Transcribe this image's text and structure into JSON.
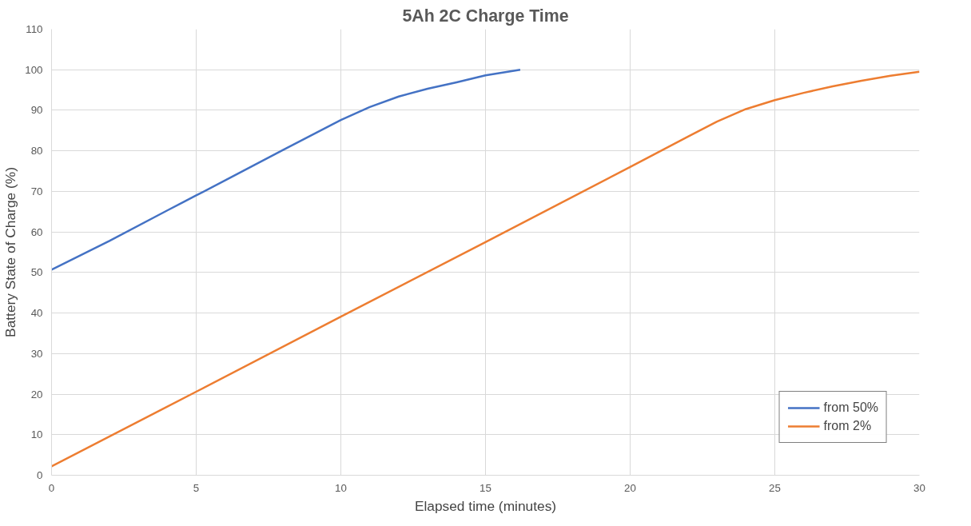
{
  "chart_data": {
    "type": "line",
    "title": "5Ah 2C Charge Time",
    "xlabel": "Elapsed time (minutes)",
    "ylabel": "Battery State of Charge (%)",
    "xlim": [
      0,
      30
    ],
    "xticks": [
      0,
      5,
      10,
      15,
      20,
      25,
      30
    ],
    "ylim": [
      0,
      110
    ],
    "yticks": [
      0,
      10,
      20,
      30,
      40,
      50,
      60,
      70,
      80,
      90,
      100,
      110
    ],
    "grid": true,
    "legend": "bottom right",
    "marker": "none",
    "line_style": "solid",
    "series": [
      {
        "name": "from 50%",
        "color": "#4472c4",
        "x": [
          0,
          2,
          4,
          5,
          6,
          8,
          10,
          11,
          12,
          13,
          14,
          15,
          16.2
        ],
        "values": [
          50.7,
          57.8,
          65.3,
          69,
          72.7,
          80.2,
          87.6,
          90.8,
          93.4,
          95.3,
          96.9,
          98.6,
          100
        ]
      },
      {
        "name": "from 2%",
        "color": "#ed7d31",
        "x": [
          0,
          5,
          10,
          15,
          20,
          22,
          23,
          24,
          25,
          26,
          27,
          28,
          29,
          30
        ],
        "values": [
          2.2,
          20.6,
          39.1,
          57.5,
          76,
          83.5,
          87.2,
          90.3,
          92.5,
          94.3,
          95.9,
          97.3,
          98.5,
          99.5
        ]
      }
    ]
  }
}
